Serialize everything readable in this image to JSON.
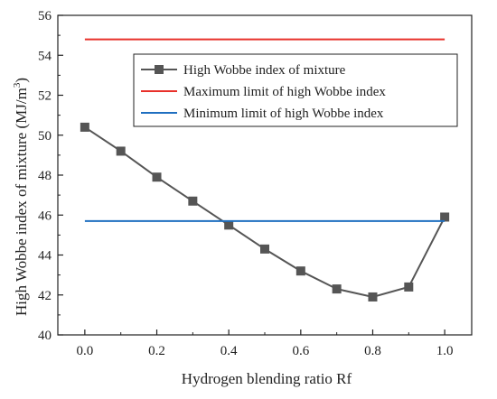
{
  "chart_data": {
    "type": "line",
    "xlabel": "Hydrogen blending ratio Rf",
    "ylabel": {
      "before": "High Wobbe index of mixture (MJ/m",
      "superscript": "3",
      "after": ")"
    },
    "xlim": [
      -0.075,
      1.075
    ],
    "ylim": [
      40,
      56
    ],
    "x_ticks": [
      0.0,
      0.2,
      0.4,
      0.6,
      0.8,
      1.0
    ],
    "x_tick_labels": [
      "0.0",
      "0.2",
      "0.4",
      "0.6",
      "0.8",
      "1.0"
    ],
    "y_ticks": [
      40,
      42,
      44,
      46,
      48,
      50,
      52,
      54,
      56
    ],
    "y_tick_labels": [
      "40",
      "42",
      "44",
      "46",
      "48",
      "50",
      "52",
      "54",
      "56"
    ],
    "grid": false,
    "legend_position": "upper-right",
    "series": [
      {
        "name": "High Wobbe index of mixture",
        "color": "#555555",
        "marker": "square",
        "x": [
          0.0,
          0.1,
          0.2,
          0.3,
          0.4,
          0.5,
          0.6,
          0.7,
          0.8,
          0.9,
          1.0
        ],
        "y": [
          50.4,
          49.2,
          47.9,
          46.7,
          45.5,
          44.3,
          43.2,
          42.3,
          41.9,
          42.4,
          45.9
        ]
      },
      {
        "name": "Maximum limit of high Wobbe index",
        "color": "#e8302a",
        "marker": "none",
        "x": [
          0.0,
          1.0
        ],
        "y": [
          54.8,
          54.8
        ]
      },
      {
        "name": "Minimum limit of high Wobbe index",
        "color": "#1f6fc0",
        "marker": "none",
        "x": [
          0.0,
          1.0
        ],
        "y": [
          45.7,
          45.7
        ]
      }
    ]
  }
}
